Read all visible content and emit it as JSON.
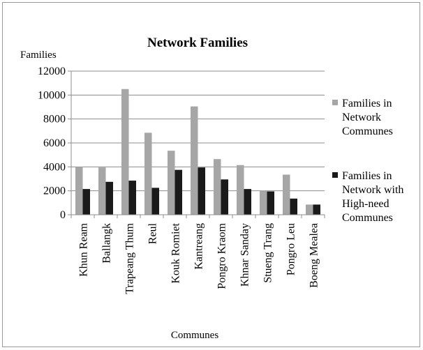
{
  "chart_data": {
    "type": "bar",
    "title": "Network Families",
    "xlabel": "Communes",
    "ylabel": "Families",
    "ylim": [
      0,
      12000
    ],
    "yticks": [
      0,
      2000,
      4000,
      6000,
      8000,
      10000,
      12000
    ],
    "grid": "horizontal",
    "legend_position": "right",
    "categories": [
      "Khun Ream",
      "Ballangk",
      "Trapeang Thum",
      "Reul",
      "Kouk Romiet",
      "Kantreang",
      "Pongro Kraom",
      "Khnar Sanday",
      "Stueng Trang",
      "Pongro Leu",
      "Boeng Mealea"
    ],
    "series": [
      {
        "name": "Families in Network Communes",
        "legend_lines": [
          "Families in",
          "Network",
          "Communes"
        ],
        "color": "#a6a6a6",
        "values": [
          4000,
          3950,
          10500,
          6850,
          5350,
          9050,
          4650,
          4150,
          2000,
          3350,
          850
        ]
      },
      {
        "name": "Families in Network with High-need Communes",
        "legend_lines": [
          "Families in",
          "Network with",
          "High-need",
          "Communes"
        ],
        "color": "#1a1a1a",
        "values": [
          2150,
          2750,
          2850,
          2250,
          3750,
          3950,
          2950,
          2150,
          1950,
          1350,
          850
        ]
      }
    ]
  }
}
